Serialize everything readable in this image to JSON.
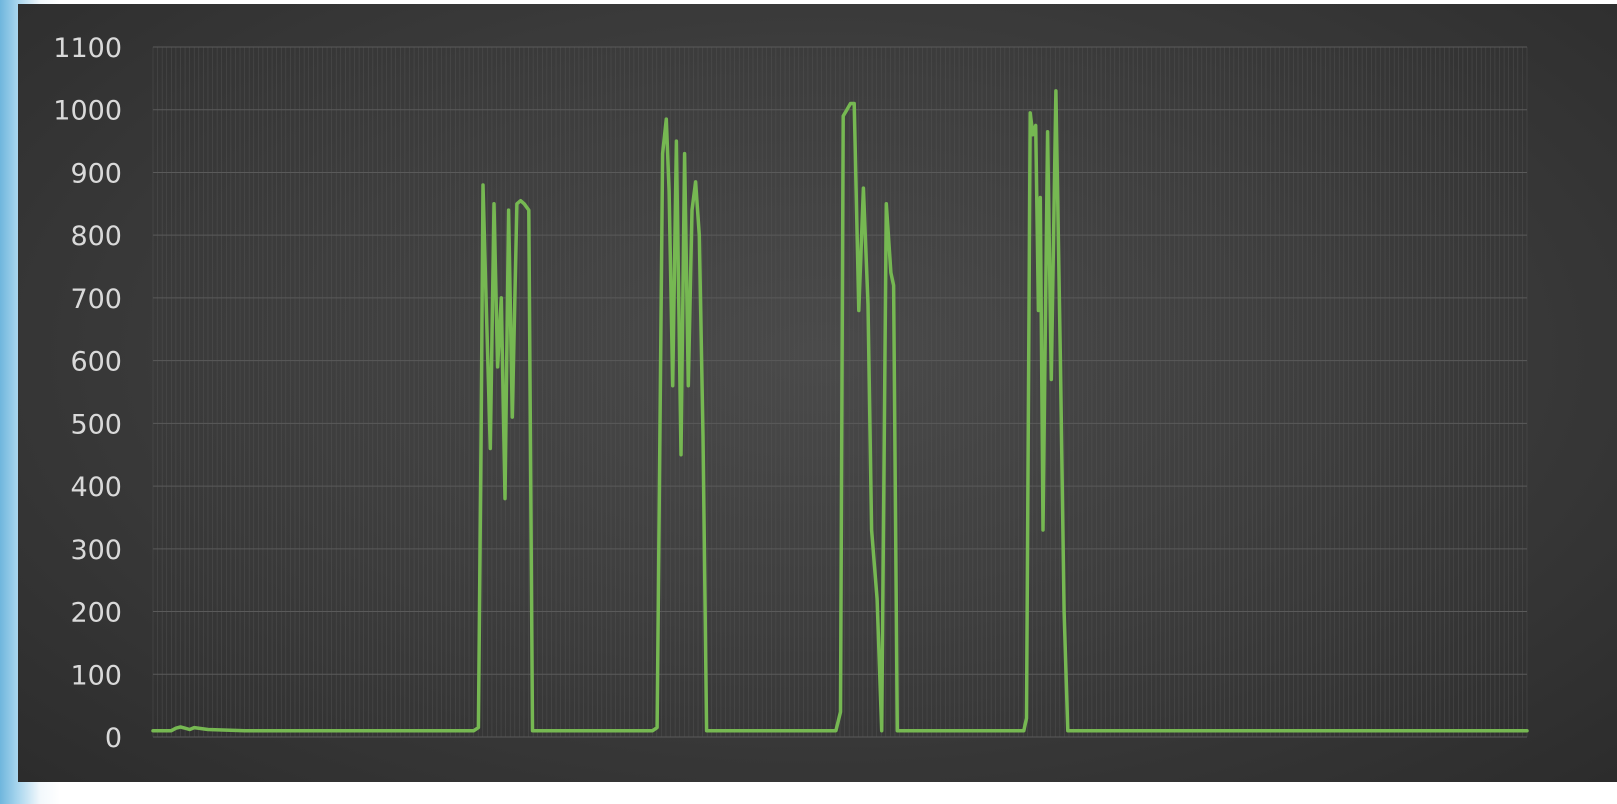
{
  "chart_data": {
    "type": "line",
    "title": "",
    "xlabel": "",
    "ylabel": "",
    "ylim": [
      0,
      1100
    ],
    "yticks": [
      "0",
      "100",
      "200",
      "300",
      "400",
      "500",
      "600",
      "700",
      "800",
      "900",
      "1000",
      "1100"
    ],
    "grid": true,
    "legend": "none",
    "colors": {
      "background": "#3e3e3e",
      "line": "#76b852",
      "grid": "#5a5a5a",
      "text": "#d9d9d9"
    },
    "series": [
      {
        "x": [
          0,
          10,
          15,
          20,
          25,
          30,
          35,
          40,
          45,
          60,
          100,
          200,
          300,
          350,
          355,
          358,
          360,
          363,
          368,
          372,
          376,
          380,
          384,
          388,
          392,
          397,
          401,
          405,
          410,
          414,
          420,
          425,
          432,
          437,
          440,
          460,
          500,
          545,
          550,
          553,
          556,
          560,
          563,
          567,
          571,
          576,
          580,
          584,
          588,
          592,
          596,
          600,
          604,
          608,
          612,
          616,
          621,
          626,
          632,
          635,
          640,
          680,
          730,
          745,
          750,
          753,
          757,
          761,
          765,
          770,
          775,
          780,
          784,
          790,
          795,
          800,
          805,
          808,
          812,
          817,
          820,
          825,
          830,
          834,
          837,
          840,
          870,
          935,
          943,
          947,
          950,
          953,
          957,
          960,
          963,
          966,
          968,
          971,
          976,
          980,
          985,
          990,
          994,
          998,
          1000,
          1003,
          1006,
          1009,
          1013,
          1017,
          1020,
          1025,
          1040,
          1100,
          1200,
          1300,
          1400,
          1499
        ],
        "y": [
          10,
          10,
          10,
          10,
          14,
          16,
          14,
          12,
          15,
          12,
          10,
          10,
          10,
          10,
          15,
          480,
          880,
          720,
          460,
          850,
          590,
          700,
          380,
          840,
          510,
          850,
          855,
          850,
          840,
          10,
          10,
          10,
          10,
          10,
          10,
          10,
          10,
          10,
          15,
          480,
          930,
          985,
          870,
          560,
          950,
          450,
          930,
          560,
          840,
          885,
          800,
          480,
          10,
          10,
          10,
          10,
          10,
          10,
          10,
          10,
          10,
          10,
          10,
          10,
          40,
          990,
          1000,
          1010,
          1010,
          680,
          875,
          690,
          330,
          220,
          10,
          850,
          740,
          720,
          10,
          10,
          10,
          10,
          10,
          10,
          10,
          10,
          10,
          10,
          10,
          10,
          10,
          30,
          995,
          960,
          975,
          680,
          860,
          330,
          965,
          570,
          1030,
          600,
          200,
          10,
          10,
          10,
          10,
          10,
          10,
          10,
          10,
          10,
          10,
          10,
          10,
          10,
          10,
          10
        ]
      }
    ]
  }
}
